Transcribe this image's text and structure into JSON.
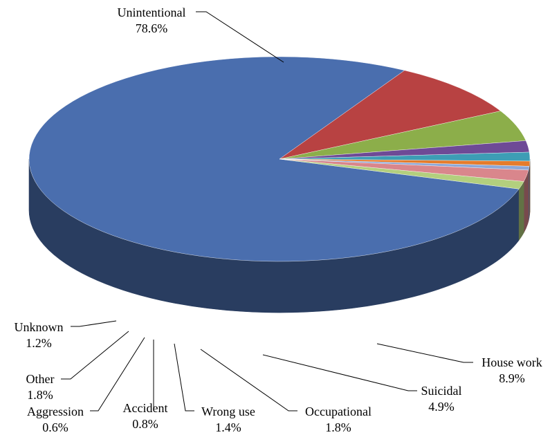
{
  "chart_data": {
    "type": "pie",
    "style": "3d",
    "title": "",
    "slices": [
      {
        "label": "Unintentional",
        "value_label": "78.6%",
        "value": 78.6,
        "color": "#4A6EAE"
      },
      {
        "label": "House work",
        "value_label": "8.9%",
        "value": 8.9,
        "color": "#B84242"
      },
      {
        "label": "Suicidal",
        "value_label": "4.9%",
        "value": 4.9,
        "color": "#8CAE4A"
      },
      {
        "label": "Occupational",
        "value_label": "1.8%",
        "value": 1.8,
        "color": "#6E4A96"
      },
      {
        "label": "Wrong use",
        "value_label": "1.4%",
        "value": 1.4,
        "color": "#3D9DB5"
      },
      {
        "label": "Accident",
        "value_label": "0.8%",
        "value": 0.8,
        "color": "#E57C2C"
      },
      {
        "label": "Aggression",
        "value_label": "0.6%",
        "value": 0.6,
        "color": "#8DA8D8"
      },
      {
        "label": "Other",
        "value_label": "1.8%",
        "value": 1.8,
        "color": "#D9868C"
      },
      {
        "label": "Unknown",
        "value_label": "1.2%",
        "value": 1.2,
        "color": "#B3CF7E"
      }
    ],
    "legend": "none"
  }
}
